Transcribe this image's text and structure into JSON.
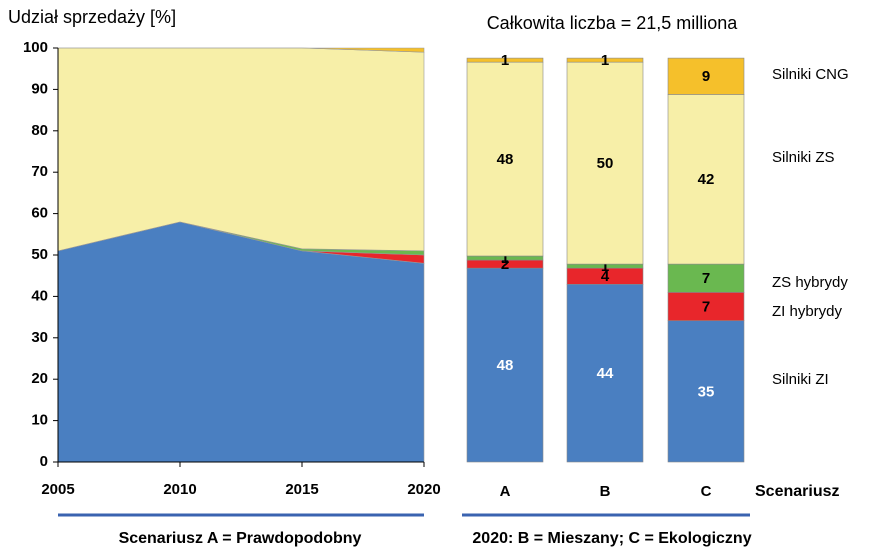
{
  "chart_data": [
    {
      "type": "area",
      "y_label": "Udział sprzedaży  [%]",
      "x": [
        2005,
        2010,
        2015,
        2020
      ],
      "xlim": [
        2005,
        2020
      ],
      "xticks": [
        2005,
        2010,
        2015,
        2020
      ],
      "ylim": [
        0,
        100
      ],
      "yticks": [
        0,
        10,
        20,
        30,
        40,
        50,
        60,
        70,
        80,
        90,
        100
      ],
      "stacked": true,
      "series": [
        {
          "color": "#4a7fc1",
          "values": [
            51,
            58,
            51,
            48
          ]
        },
        {
          "color": "#e8262b",
          "values": [
            0,
            0,
            0,
            2
          ]
        },
        {
          "color": "#6ab850",
          "values": [
            0,
            0,
            0.5,
            1
          ]
        },
        {
          "color": "#f7efa8",
          "values": [
            49,
            42,
            48.5,
            48
          ]
        },
        {
          "color": "#f5c02b",
          "values": [
            0,
            0,
            0,
            1
          ]
        }
      ],
      "caption": "Scenariusz A = Prawdopodobny"
    },
    {
      "type": "bar",
      "title": "Całkowita liczba = 21,5 milliona",
      "categories": [
        "A",
        "B",
        "C"
      ],
      "x_label": "Scenariusz",
      "ylim": [
        0,
        102.5
      ],
      "stacked": true,
      "series": [
        {
          "name": "Silniki ZI",
          "color": "#4a7fc1",
          "label_color": "#ffffff",
          "values": [
            48,
            44,
            35
          ]
        },
        {
          "name": "ZI hybrydy",
          "color": "#e8262b",
          "label_color": "#000000",
          "values": [
            2,
            4,
            7
          ]
        },
        {
          "name": "ZS hybrydy",
          "color": "#6ab850",
          "label_color": "#000000",
          "values": [
            1,
            1,
            7
          ]
        },
        {
          "name": "Silniki ZS",
          "color": "#f7efa8",
          "label_color": "#000000",
          "values": [
            48,
            50,
            42
          ]
        },
        {
          "name": "Silniki CNG",
          "color": "#f5c02b",
          "label_color": "#000000",
          "values": [
            1,
            1,
            9
          ]
        }
      ],
      "caption": "2020: B = Mieszany; C = Ekologiczny"
    }
  ]
}
